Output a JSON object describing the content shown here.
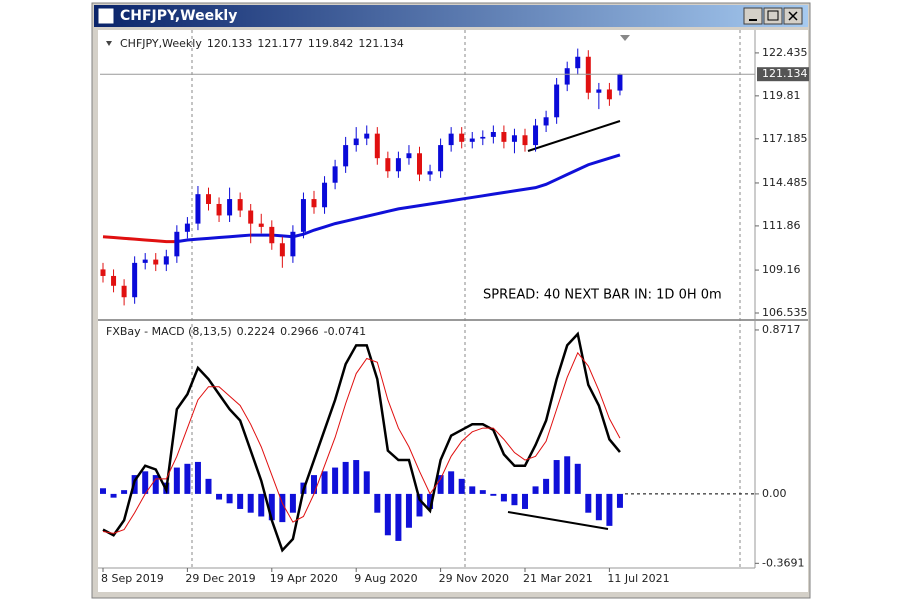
{
  "window": {
    "title": "CHFJPY,Weekly"
  },
  "chart_data": [
    {
      "type": "candlestick",
      "title": "CHFJPY,Weekly",
      "ylim": [
        106.23,
        123.53
      ],
      "yticks": [
        122.435,
        119.81,
        117.185,
        114.485,
        111.86,
        109.16,
        106.535
      ],
      "up_color": "#0a0ad8",
      "down_color": "#e01010",
      "candles": [
        [
          109.2,
          109.6,
          108.4,
          108.8
        ],
        [
          108.8,
          109.2,
          107.8,
          108.2
        ],
        [
          108.2,
          108.6,
          107.0,
          107.5
        ],
        [
          107.5,
          110.0,
          107.1,
          109.6
        ],
        [
          109.6,
          110.2,
          109.2,
          109.8
        ],
        [
          109.8,
          110.2,
          109.1,
          109.5
        ],
        [
          109.5,
          110.4,
          109.1,
          110.0
        ],
        [
          110.0,
          111.9,
          109.6,
          111.5
        ],
        [
          111.5,
          112.4,
          111.1,
          112.0
        ],
        [
          112.0,
          114.3,
          111.6,
          113.8
        ],
        [
          113.8,
          114.2,
          112.8,
          113.2
        ],
        [
          113.2,
          113.6,
          112.1,
          112.5
        ],
        [
          112.5,
          114.2,
          112.1,
          113.5
        ],
        [
          113.5,
          113.9,
          112.4,
          112.8
        ],
        [
          112.8,
          113.2,
          110.8,
          112.0
        ],
        [
          112.0,
          112.6,
          111.4,
          111.8
        ],
        [
          111.8,
          112.2,
          110.4,
          110.8
        ],
        [
          110.8,
          111.2,
          109.3,
          110.0
        ],
        [
          110.0,
          111.9,
          109.6,
          111.5
        ],
        [
          111.5,
          113.9,
          111.1,
          113.5
        ],
        [
          113.5,
          114.0,
          112.6,
          113.0
        ],
        [
          113.0,
          114.9,
          112.6,
          114.5
        ],
        [
          114.5,
          115.9,
          114.1,
          115.5
        ],
        [
          115.5,
          117.3,
          115.1,
          116.8
        ],
        [
          116.8,
          117.9,
          116.4,
          117.2
        ],
        [
          117.2,
          118.0,
          116.8,
          117.5
        ],
        [
          117.5,
          117.9,
          115.6,
          116.0
        ],
        [
          116.0,
          116.4,
          114.8,
          115.2
        ],
        [
          115.2,
          116.4,
          114.8,
          116.0
        ],
        [
          116.0,
          116.8,
          115.6,
          116.3
        ],
        [
          116.3,
          116.7,
          114.6,
          115.0
        ],
        [
          115.0,
          115.6,
          114.6,
          115.2
        ],
        [
          115.2,
          117.2,
          114.8,
          116.8
        ],
        [
          116.8,
          117.9,
          116.4,
          117.5
        ],
        [
          117.5,
          117.9,
          116.6,
          117.0
        ],
        [
          117.0,
          117.6,
          116.6,
          117.2
        ],
        [
          117.2,
          117.7,
          116.8,
          117.3
        ],
        [
          117.3,
          118.0,
          116.9,
          117.6
        ],
        [
          117.6,
          118.0,
          116.6,
          117.0
        ],
        [
          117.0,
          117.8,
          116.3,
          117.4
        ],
        [
          117.4,
          117.8,
          116.4,
          116.8
        ],
        [
          116.8,
          118.4,
          116.4,
          118.0
        ],
        [
          118.0,
          118.9,
          117.6,
          118.5
        ],
        [
          118.5,
          120.9,
          118.1,
          120.5
        ],
        [
          120.5,
          121.9,
          120.1,
          121.5
        ],
        [
          121.5,
          122.7,
          121.1,
          122.2
        ],
        [
          122.2,
          122.6,
          119.6,
          120.0
        ],
        [
          120.0,
          120.6,
          119.0,
          120.2
        ],
        [
          120.2,
          120.6,
          119.2,
          119.6
        ],
        [
          120.133,
          121.177,
          119.842,
          121.134
        ]
      ],
      "series": [
        {
          "color": "#e01010",
          "values": [
            111.2,
            111.15,
            111.1,
            111.05,
            111.0,
            110.95,
            110.9,
            110.9,
            null,
            null,
            null,
            null,
            null,
            null,
            null,
            null,
            null,
            null,
            null,
            null,
            null,
            null,
            null,
            null,
            null,
            null,
            null,
            null,
            null,
            null,
            null,
            null,
            null,
            null,
            null,
            null,
            null,
            null,
            null,
            null,
            null,
            null,
            null,
            null,
            null,
            null,
            null,
            null,
            null,
            null
          ]
        },
        {
          "color": "#1010d8",
          "values": [
            null,
            null,
            null,
            null,
            null,
            null,
            null,
            110.9,
            111.0,
            111.05,
            111.1,
            111.15,
            111.2,
            111.25,
            111.3,
            111.3,
            111.3,
            111.25,
            111.2,
            111.35,
            111.6,
            111.8,
            112.0,
            112.15,
            112.3,
            112.45,
            112.6,
            112.75,
            112.9,
            113.0,
            113.1,
            113.2,
            113.3,
            113.4,
            113.5,
            113.6,
            113.7,
            113.8,
            113.9,
            114.0,
            114.1,
            114.2,
            114.4,
            114.7,
            115.0,
            115.3,
            115.6,
            115.8,
            116.0,
            116.2
          ]
        }
      ],
      "annotation": "SPREAD: 40 NEXT BAR IN: 1D 0H 0m"
    },
    {
      "type": "macd",
      "title": "FXBay - MACD (8,13,5)",
      "ylim": [
        -0.394,
        0.914
      ],
      "yticks": [
        0.8717,
        {
          "value": 0,
          "label": "0.00"
        },
        -0.3691
      ],
      "histogram": {
        "color": "#1010d8",
        "values": [
          0.03,
          -0.02,
          0.02,
          0.1,
          0.12,
          0.1,
          0.06,
          0.14,
          0.16,
          0.17,
          0.08,
          -0.03,
          -0.05,
          -0.08,
          -0.1,
          -0.12,
          -0.14,
          -0.15,
          -0.1,
          0.06,
          0.1,
          0.12,
          0.14,
          0.17,
          0.18,
          0.12,
          -0.1,
          -0.22,
          -0.25,
          -0.18,
          -0.12,
          -0.08,
          0.1,
          0.12,
          0.08,
          0.04,
          0.02,
          -0.01,
          -0.04,
          -0.06,
          -0.08,
          0.04,
          0.08,
          0.18,
          0.2,
          0.16,
          -0.1,
          -0.14,
          -0.17,
          -0.0741
        ]
      },
      "series": [
        {
          "color": "#000000",
          "values": [
            -0.19,
            -0.22,
            -0.14,
            0.07,
            0.15,
            0.13,
            0.02,
            0.45,
            0.53,
            0.67,
            0.61,
            0.53,
            0.45,
            0.39,
            0.23,
            0.07,
            -0.14,
            -0.3,
            -0.24,
            0.02,
            0.18,
            0.34,
            0.5,
            0.69,
            0.79,
            0.79,
            0.61,
            0.23,
            0.18,
            0.18,
            -0.03,
            -0.09,
            0.18,
            0.31,
            0.34,
            0.37,
            0.37,
            0.34,
            0.21,
            0.15,
            0.15,
            0.26,
            0.39,
            0.61,
            0.79,
            0.85,
            0.58,
            0.47,
            0.29,
            0.2224
          ]
        },
        {
          "color": "#e01010",
          "values": [
            -0.2,
            -0.21,
            -0.19,
            -0.1,
            0.0,
            0.08,
            0.08,
            0.2,
            0.35,
            0.5,
            0.57,
            0.57,
            0.52,
            0.47,
            0.37,
            0.25,
            0.1,
            -0.05,
            -0.15,
            -0.12,
            0.0,
            0.15,
            0.3,
            0.48,
            0.64,
            0.72,
            0.7,
            0.5,
            0.35,
            0.25,
            0.12,
            0.0,
            0.08,
            0.2,
            0.28,
            0.33,
            0.35,
            0.35,
            0.29,
            0.22,
            0.18,
            0.2,
            0.28,
            0.45,
            0.62,
            0.75,
            0.68,
            0.55,
            0.4,
            0.2966
          ]
        }
      ],
      "x_labels": [
        {
          "value": 0,
          "label": "8 Sep 2019"
        },
        {
          "value": 8,
          "label": "29 Dec 2019"
        },
        {
          "value": 16,
          "label": "19 Apr 2020"
        },
        {
          "value": 24,
          "label": "9 Aug 2020"
        },
        {
          "value": 32,
          "label": "29 Nov 2020"
        },
        {
          "value": 40,
          "label": "21 Mar 2021"
        },
        {
          "value": 48,
          "label": "11 Jul 2021"
        }
      ]
    }
  ]
}
